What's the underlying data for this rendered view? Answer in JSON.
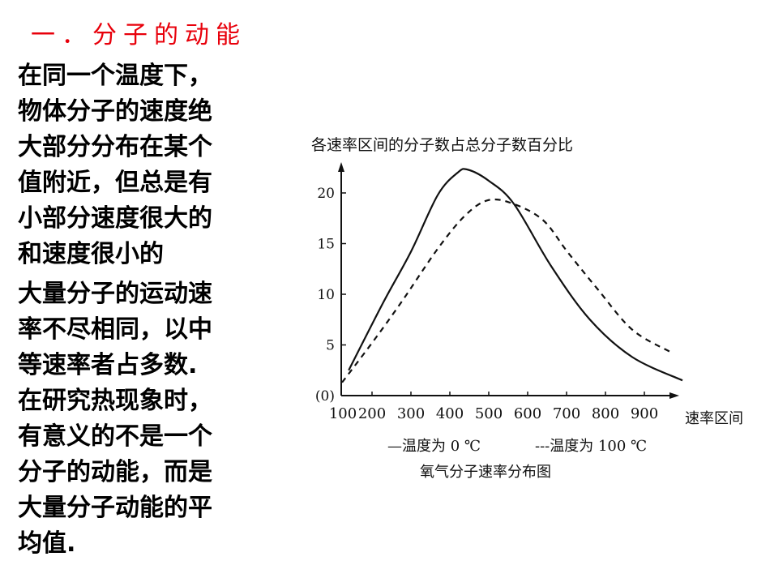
{
  "slide": {
    "title": "一．分子的动能",
    "paragraphs": [
      [
        "在同一个温度下，",
        "物体分子的速度绝",
        "大部分分布在某个",
        "值附近，但总是有",
        "小部分速度很大的",
        "和速度很小的"
      ],
      [
        "大量分子的运动速",
        "率不尽相同，以中",
        "等速率者占多数.",
        "在研究热现象时，",
        "有意义的不是一个",
        "分子的动能，而是",
        "大量分子动能的平",
        "均值."
      ]
    ]
  },
  "chart_data": {
    "type": "line",
    "title": "各速率区间的分子数占总分子数百分比",
    "caption": "氧气分子速率分布图",
    "xlabel": "速率区间",
    "ylabel": "各速率区间的分子数占总分子数百分比",
    "x_ticks": [
      "100",
      "200",
      "300",
      "400",
      "500",
      "600",
      "700",
      "800",
      "900"
    ],
    "y_ticks": [
      "(0)",
      "5",
      "10",
      "15",
      "20"
    ],
    "xlim": [
      100,
      1000
    ],
    "ylim": [
      0,
      24
    ],
    "grid": false,
    "legend_position": "bottom",
    "series": [
      {
        "name": "温度为 0 ℃",
        "style": "solid",
        "legend_marker": "—",
        "x": [
          140,
          229,
          300,
          369,
          420,
          446,
          500,
          565,
          660,
          760,
          869,
          998
        ],
        "y": [
          2.5,
          9.2,
          14.2,
          19.8,
          22.0,
          22.3,
          21.2,
          18.9,
          12.8,
          7.5,
          3.8,
          1.5
        ]
      },
      {
        "name": "温度为 100 ℃",
        "style": "dashed",
        "legend_marker": "---",
        "x": [
          123,
          200,
          275,
          369,
          440,
          500,
          565,
          640,
          702,
          780,
          869,
          967
        ],
        "y": [
          1.3,
          5.2,
          9.2,
          14.5,
          17.8,
          19.3,
          18.9,
          17.3,
          14.2,
          10.5,
          6.5,
          4.3
        ]
      }
    ]
  }
}
